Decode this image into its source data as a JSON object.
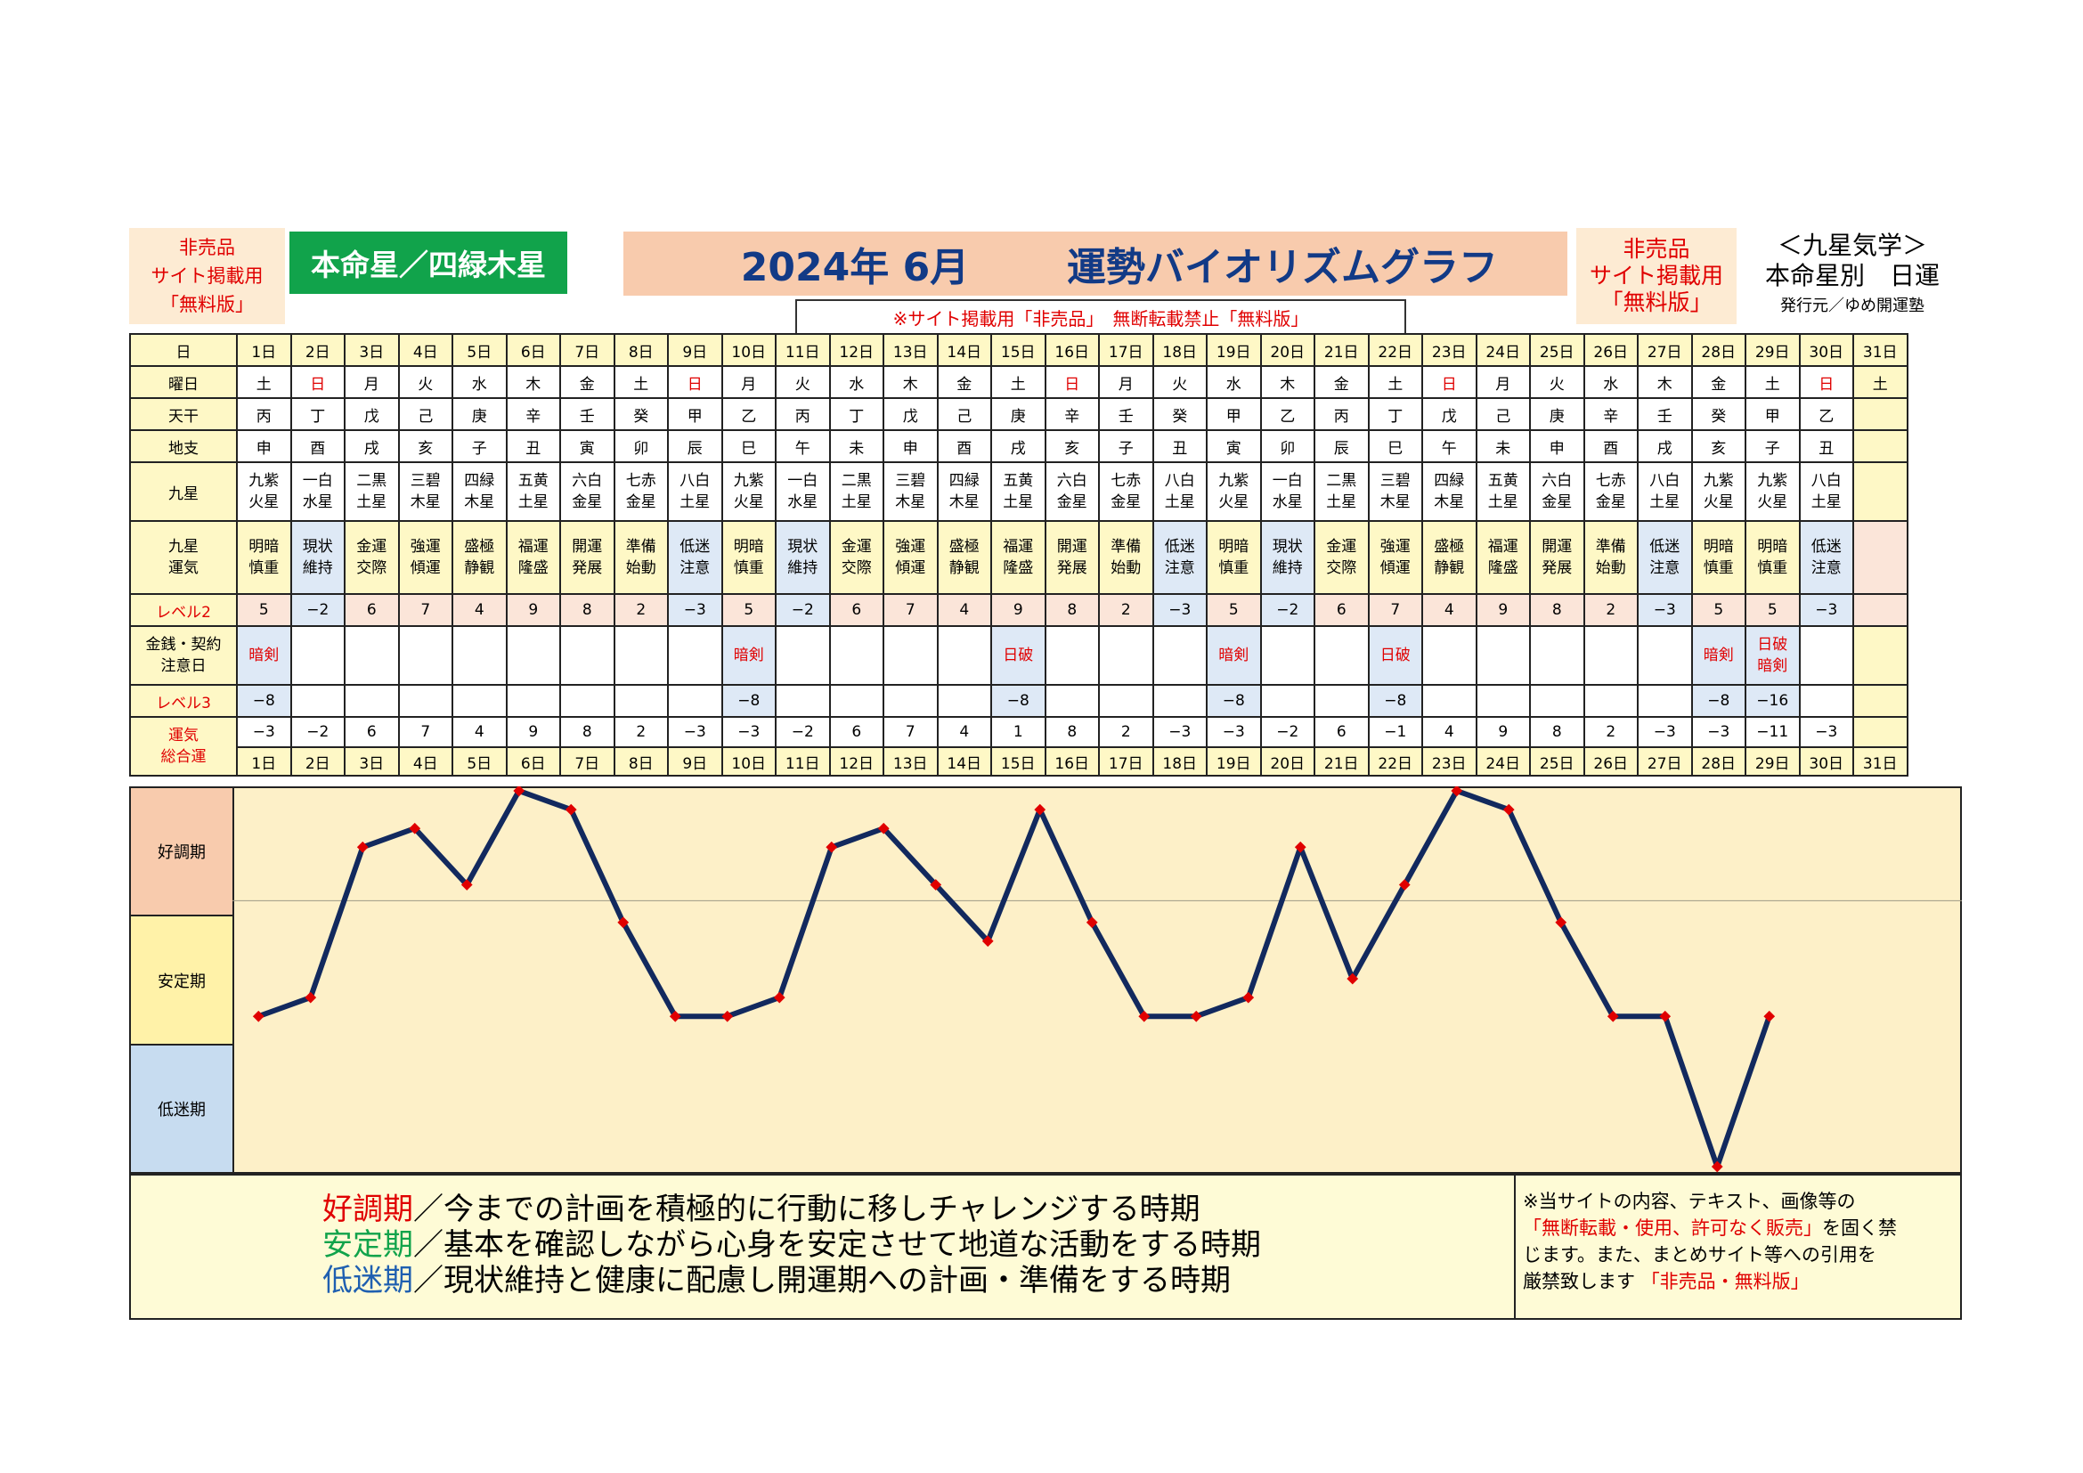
{
  "header": {
    "nonsale_left": [
      "非売品",
      "サイト掲載用",
      "「無料版」"
    ],
    "honmei": "本命星／四緑木星",
    "title_year": "2024年 6月",
    "title_main": "運勢バイオリズムグラフ",
    "notice": "※サイト掲載用「非売品」　無断転載禁止「無料版」",
    "nonsale_right": [
      "非売品",
      "サイト掲載用",
      "「無料版」"
    ],
    "right_title": "＜九星気学＞",
    "right_sub": "本命星別　日運",
    "publisher": "発行元／ゆめ開運塾"
  },
  "row_labels": {
    "day": "日",
    "weekday": "曜日",
    "tenkan": "天干",
    "chishi": "地支",
    "kyusei": "九星",
    "kyusei_unki": [
      "九星",
      "運気"
    ],
    "level2": "レベル2",
    "kinsen": [
      "金銭・契約",
      "注意日"
    ],
    "level3": "レベル3",
    "total": [
      "運気",
      "総合運"
    ]
  },
  "days": [
    "1日",
    "2日",
    "3日",
    "4日",
    "5日",
    "6日",
    "7日",
    "8日",
    "9日",
    "10日",
    "11日",
    "12日",
    "13日",
    "14日",
    "15日",
    "16日",
    "17日",
    "18日",
    "19日",
    "20日",
    "21日",
    "22日",
    "23日",
    "24日",
    "25日",
    "26日",
    "27日",
    "28日",
    "29日",
    "30日",
    "31日"
  ],
  "weekdays": [
    "土",
    "日",
    "月",
    "火",
    "水",
    "木",
    "金",
    "土",
    "日",
    "月",
    "火",
    "水",
    "木",
    "金",
    "土",
    "日",
    "月",
    "火",
    "水",
    "木",
    "金",
    "土",
    "日",
    "月",
    "火",
    "水",
    "木",
    "金",
    "土",
    "日",
    "土"
  ],
  "weekday_red": [
    false,
    true,
    false,
    false,
    false,
    false,
    false,
    false,
    true,
    false,
    false,
    false,
    false,
    false,
    false,
    true,
    false,
    false,
    false,
    false,
    false,
    false,
    true,
    false,
    false,
    false,
    false,
    false,
    false,
    true,
    false
  ],
  "tenkan": [
    "丙",
    "丁",
    "戊",
    "己",
    "庚",
    "辛",
    "壬",
    "癸",
    "甲",
    "乙",
    "丙",
    "丁",
    "戊",
    "己",
    "庚",
    "辛",
    "壬",
    "癸",
    "甲",
    "乙",
    "丙",
    "丁",
    "戊",
    "己",
    "庚",
    "辛",
    "壬",
    "癸",
    "甲",
    "乙",
    ""
  ],
  "chishi": [
    "申",
    "酉",
    "戌",
    "亥",
    "子",
    "丑",
    "寅",
    "卯",
    "辰",
    "巳",
    "午",
    "未",
    "申",
    "酉",
    "戌",
    "亥",
    "子",
    "丑",
    "寅",
    "卯",
    "辰",
    "巳",
    "午",
    "未",
    "申",
    "酉",
    "戌",
    "亥",
    "子",
    "丑",
    ""
  ],
  "kyusei": [
    [
      "九紫",
      "火星"
    ],
    [
      "一白",
      "水星"
    ],
    [
      "二黒",
      "土星"
    ],
    [
      "三碧",
      "木星"
    ],
    [
      "四緑",
      "木星"
    ],
    [
      "五黄",
      "土星"
    ],
    [
      "六白",
      "金星"
    ],
    [
      "七赤",
      "金星"
    ],
    [
      "八白",
      "土星"
    ],
    [
      "九紫",
      "火星"
    ],
    [
      "一白",
      "水星"
    ],
    [
      "二黒",
      "土星"
    ],
    [
      "三碧",
      "木星"
    ],
    [
      "四緑",
      "木星"
    ],
    [
      "五黄",
      "土星"
    ],
    [
      "六白",
      "金星"
    ],
    [
      "七赤",
      "金星"
    ],
    [
      "八白",
      "土星"
    ],
    [
      "九紫",
      "火星"
    ],
    [
      "一白",
      "水星"
    ],
    [
      "二黒",
      "土星"
    ],
    [
      "三碧",
      "木星"
    ],
    [
      "四緑",
      "木星"
    ],
    [
      "五黄",
      "土星"
    ],
    [
      "六白",
      "金星"
    ],
    [
      "七赤",
      "金星"
    ],
    [
      "八白",
      "土星"
    ],
    [
      "九紫",
      "火星"
    ],
    [
      "九紫",
      "火星"
    ],
    [
      "八白",
      "土星"
    ],
    [
      "",
      ""
    ]
  ],
  "unki": [
    [
      "明暗",
      "慎重"
    ],
    [
      "現状",
      "維持"
    ],
    [
      "金運",
      "交際"
    ],
    [
      "強運",
      "傾運"
    ],
    [
      "盛極",
      "静観"
    ],
    [
      "福運",
      "隆盛"
    ],
    [
      "開運",
      "発展"
    ],
    [
      "準備",
      "始動"
    ],
    [
      "低迷",
      "注意"
    ],
    [
      "明暗",
      "慎重"
    ],
    [
      "現状",
      "維持"
    ],
    [
      "金運",
      "交際"
    ],
    [
      "強運",
      "傾運"
    ],
    [
      "盛極",
      "静観"
    ],
    [
      "福運",
      "隆盛"
    ],
    [
      "開運",
      "発展"
    ],
    [
      "準備",
      "始動"
    ],
    [
      "低迷",
      "注意"
    ],
    [
      "明暗",
      "慎重"
    ],
    [
      "現状",
      "維持"
    ],
    [
      "金運",
      "交際"
    ],
    [
      "強運",
      "傾運"
    ],
    [
      "盛極",
      "静観"
    ],
    [
      "福運",
      "隆盛"
    ],
    [
      "開運",
      "発展"
    ],
    [
      "準備",
      "始動"
    ],
    [
      "低迷",
      "注意"
    ],
    [
      "明暗",
      "慎重"
    ],
    [
      "明暗",
      "慎重"
    ],
    [
      "低迷",
      "注意"
    ],
    [
      "",
      ""
    ]
  ],
  "unki_bg": [
    "y",
    "b",
    "y",
    "y",
    "y",
    "y",
    "y",
    "y",
    "b",
    "y",
    "b",
    "y",
    "y",
    "y",
    "y",
    "y",
    "y",
    "b",
    "y",
    "b",
    "y",
    "y",
    "y",
    "y",
    "y",
    "y",
    "b",
    "y",
    "y",
    "b",
    "p"
  ],
  "level2": [
    "5",
    "−2",
    "6",
    "7",
    "4",
    "9",
    "8",
    "2",
    "−3",
    "5",
    "−2",
    "6",
    "7",
    "4",
    "9",
    "8",
    "2",
    "−3",
    "5",
    "−2",
    "6",
    "7",
    "4",
    "9",
    "8",
    "2",
    "−3",
    "5",
    "5",
    "−3",
    ""
  ],
  "level2_bg": [
    "p",
    "b",
    "p",
    "p",
    "p",
    "p",
    "p",
    "p",
    "b",
    "p",
    "b",
    "p",
    "p",
    "p",
    "p",
    "p",
    "p",
    "b",
    "p",
    "b",
    "p",
    "p",
    "p",
    "p",
    "p",
    "p",
    "b",
    "p",
    "p",
    "b",
    "p"
  ],
  "kinsen": [
    [
      "暗剣"
    ],
    [],
    [],
    [],
    [],
    [],
    [],
    [],
    [],
    [
      "暗剣"
    ],
    [],
    [],
    [],
    [],
    [
      "日破"
    ],
    [],
    [],
    [],
    [
      "暗剣"
    ],
    [],
    [],
    [
      "日破"
    ],
    [],
    [],
    [],
    [],
    [],
    [
      "暗剣"
    ],
    [
      "日破",
      "暗剣"
    ],
    [],
    []
  ],
  "level3": [
    "−8",
    "",
    "",
    "",
    "",
    "",
    "",
    "",
    "",
    "−8",
    "",
    "",
    "",
    "",
    "−8",
    "",
    "",
    "",
    "−8",
    "",
    "",
    "−8",
    "",
    "",
    "",
    "",
    "",
    "−8",
    "−16",
    "",
    ""
  ],
  "total": [
    "−3",
    "−2",
    "6",
    "7",
    "4",
    "9",
    "8",
    "2",
    "−3",
    "−3",
    "−2",
    "6",
    "7",
    "4",
    "1",
    "8",
    "2",
    "−3",
    "−3",
    "−2",
    "6",
    "−1",
    "4",
    "9",
    "8",
    "2",
    "−3",
    "−3",
    "−11",
    "−3",
    ""
  ],
  "zones": {
    "good": "好調期",
    "stable": "安定期",
    "low": "低迷期"
  },
  "legend": {
    "good_term": "好調期",
    "good_text": "／今までの計画を積極的に行動に移しチャレンジする時期",
    "stable_term": "安定期",
    "stable_text": "／基本を確認しながら心身を安定させて地道な活動をする時期",
    "low_term": "低迷期",
    "low_text": "／現状維持と健康に配慮し開運期への計画・準備をする時期"
  },
  "note": {
    "line1": "※当サイトの内容、テキスト、画像等の",
    "line2_red": "「無断転載・使用、許可なく販売」",
    "line2_rest": "を固く禁",
    "line3": "じます。また、まとめサイト等への引用を",
    "line4": "厳禁致します",
    "line4_red": "「非売品・無料版」"
  },
  "colors": {
    "line": "#12295e",
    "marker": "#e00000",
    "good": "#f8cbad",
    "stable": "#fff2a8",
    "low": "#c7dcf0",
    "plot_bg": "#fdf0c8",
    "legend_good": "#e00000",
    "legend_stable": "#11a34b",
    "legend_low": "#1f5fb0"
  },
  "chart_data": {
    "type": "line",
    "x": [
      1,
      2,
      3,
      4,
      5,
      6,
      7,
      8,
      9,
      10,
      11,
      12,
      13,
      14,
      15,
      16,
      17,
      18,
      19,
      20,
      21,
      22,
      23,
      24,
      25,
      26,
      27,
      28,
      29,
      30
    ],
    "series": [
      {
        "values": [
          -3,
          -2,
          6,
          7,
          4,
          9,
          8,
          2,
          -3,
          -3,
          -2,
          6,
          7,
          4,
          1,
          8,
          2,
          -3,
          -3,
          -2,
          6,
          -1,
          4,
          9,
          8,
          2,
          -3,
          -3,
          -11,
          -3
        ]
      }
    ],
    "ylim": [
      -11,
      9
    ],
    "xlim": [
      1,
      31
    ],
    "zones": [
      "好調期",
      "安定期",
      "低迷期"
    ]
  }
}
